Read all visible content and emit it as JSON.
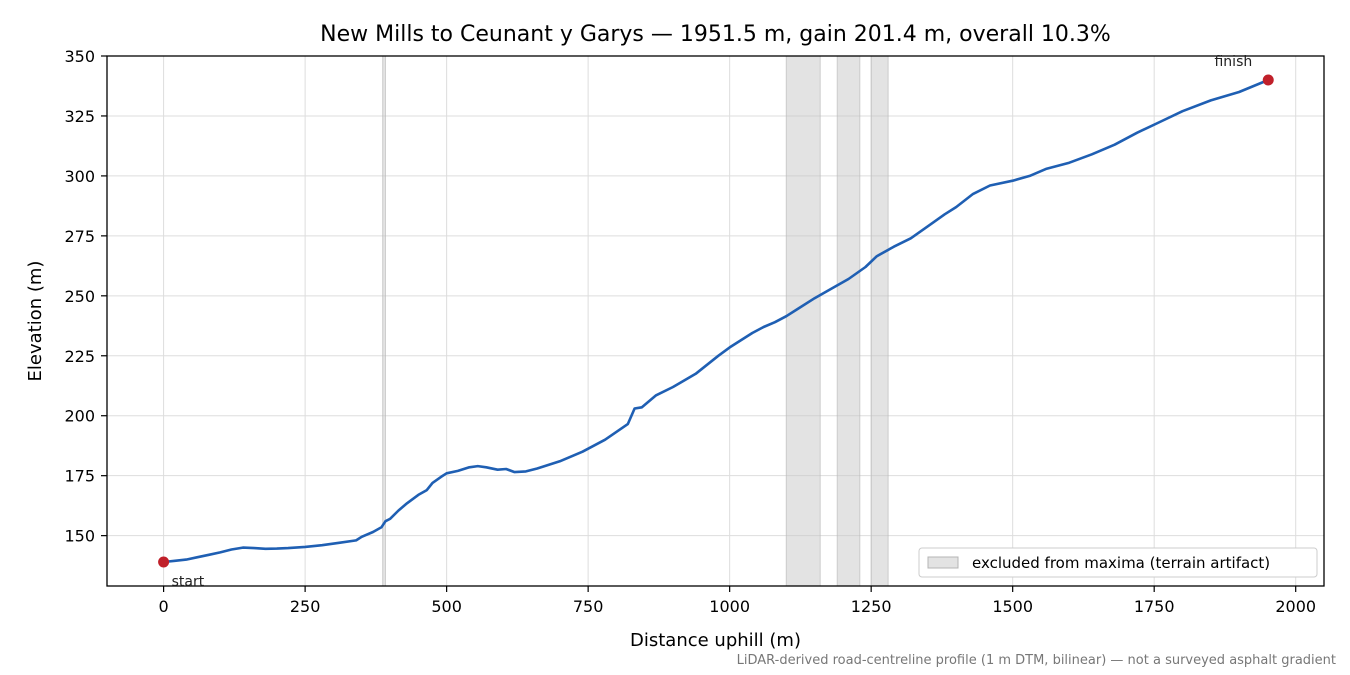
{
  "chart_data": {
    "type": "line",
    "title": "New Mills to Ceunant y Garys — 1951.5 m, gain 201.4 m, overall 10.3%",
    "xlabel": "Distance uphill (m)",
    "ylabel": "Elevation (m)",
    "xlim": [
      -100,
      2050
    ],
    "ylim": [
      129,
      350
    ],
    "x_ticks": [
      0,
      250,
      500,
      750,
      1000,
      1250,
      1500,
      1750,
      2000
    ],
    "y_ticks": [
      150,
      175,
      200,
      225,
      250,
      275,
      300,
      325,
      350
    ],
    "grid": true,
    "series": [
      {
        "color": "#1f5fb3",
        "x": [
          0,
          20,
          40,
          60,
          80,
          100,
          120,
          140,
          160,
          180,
          200,
          220,
          250,
          280,
          310,
          340,
          350,
          370,
          385,
          392,
          400,
          415,
          430,
          450,
          465,
          475,
          490,
          500,
          520,
          540,
          555,
          570,
          590,
          605,
          620,
          640,
          660,
          700,
          740,
          780,
          820,
          832,
          845,
          870,
          900,
          940,
          980,
          1000,
          1040,
          1060,
          1080,
          1100,
          1120,
          1150,
          1180,
          1210,
          1240,
          1260,
          1290,
          1320,
          1350,
          1380,
          1400,
          1430,
          1460,
          1500,
          1530,
          1560,
          1600,
          1640,
          1680,
          1720,
          1760,
          1800,
          1850,
          1900,
          1951.5
        ],
        "y": [
          139,
          139.5,
          140,
          141,
          142,
          143,
          144.2,
          145,
          144.8,
          144.5,
          144.6,
          144.8,
          145.3,
          146,
          147,
          148,
          149.5,
          151.5,
          153.5,
          156,
          157,
          160.5,
          163.5,
          167,
          169,
          172,
          174.5,
          176,
          177,
          178.5,
          179,
          178.5,
          177.5,
          177.8,
          176.5,
          176.8,
          178,
          181,
          185,
          190,
          196.5,
          203,
          203.5,
          208.5,
          212,
          217.5,
          225,
          228.5,
          234.5,
          237,
          239,
          241.5,
          244.5,
          249,
          253,
          257,
          262,
          266.5,
          270.5,
          274,
          279,
          284,
          287,
          292.5,
          296,
          298,
          300,
          303,
          305.5,
          309,
          313,
          318,
          322.5,
          327,
          331.5,
          335,
          340
        ]
      }
    ],
    "excluded_bands": [
      [
        387,
        392
      ],
      [
        1100,
        1160
      ],
      [
        1190,
        1230
      ],
      [
        1250,
        1280
      ]
    ],
    "legend": {
      "label": "excluded from maxima (terrain artifact)",
      "position": "lower-right"
    },
    "annotations": [
      {
        "text": "start",
        "x": 0,
        "y": 139
      },
      {
        "text": "finish",
        "x": 1951.5,
        "y": 340
      }
    ],
    "footnote": "LiDAR-derived road-centreline profile (1 m DTM, bilinear) — not a surveyed asphalt gradient"
  }
}
